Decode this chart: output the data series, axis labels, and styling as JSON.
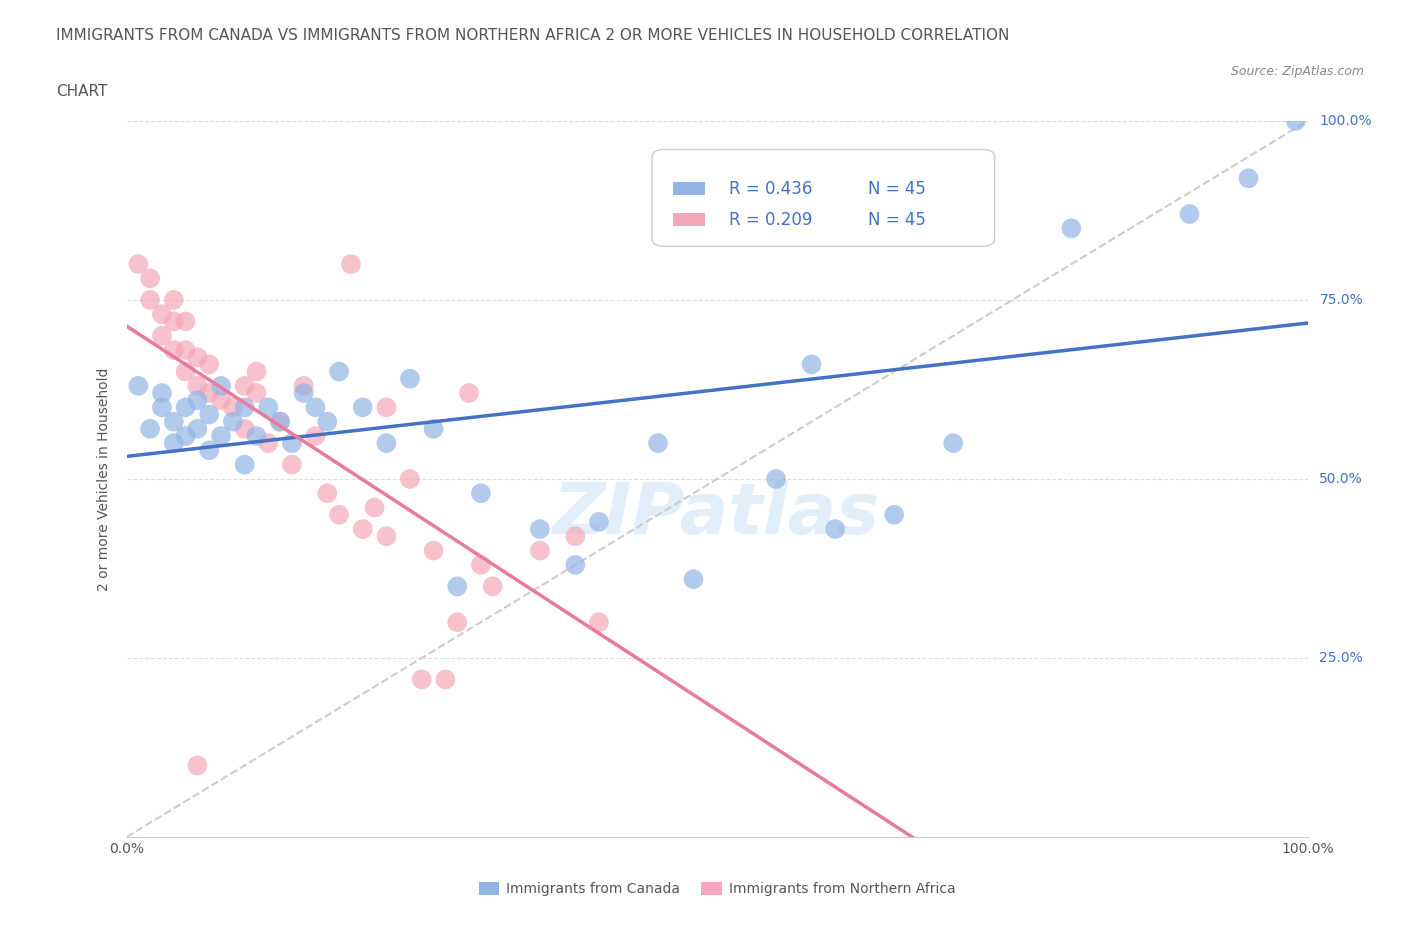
{
  "title_line1": "IMMIGRANTS FROM CANADA VS IMMIGRANTS FROM NORTHERN AFRICA 2 OR MORE VEHICLES IN HOUSEHOLD CORRELATION",
  "title_line2": "CHART",
  "source": "Source: ZipAtlas.com",
  "ylabel": "2 or more Vehicles in Household",
  "xlim": [
    0,
    1
  ],
  "ylim": [
    0,
    1
  ],
  "y_tick_labels_right": [
    "25.0%",
    "50.0%",
    "75.0%",
    "100.0%"
  ],
  "y_tick_positions_right": [
    0.25,
    0.5,
    0.75,
    1.0
  ],
  "canada_color": "#92b4e3",
  "northern_africa_color": "#f4a7b9",
  "canada_line_color": "#4472c4",
  "northern_africa_line_color": "#e87a9a",
  "legend_R_canada": "R = 0.436",
  "legend_N_canada": "N = 45",
  "legend_R_africa": "R = 0.209",
  "legend_N_africa": "N = 45",
  "canada_x": [
    0.01,
    0.02,
    0.03,
    0.03,
    0.04,
    0.04,
    0.05,
    0.05,
    0.06,
    0.06,
    0.07,
    0.07,
    0.08,
    0.08,
    0.09,
    0.1,
    0.1,
    0.11,
    0.12,
    0.13,
    0.14,
    0.15,
    0.16,
    0.17,
    0.18,
    0.2,
    0.22,
    0.24,
    0.26,
    0.3,
    0.35,
    0.4,
    0.45,
    0.55,
    0.6,
    0.65,
    0.7,
    0.8,
    0.9,
    0.95,
    0.38,
    0.28,
    0.48,
    0.58,
    0.99
  ],
  "canada_y": [
    0.63,
    0.57,
    0.6,
    0.62,
    0.55,
    0.58,
    0.56,
    0.6,
    0.57,
    0.61,
    0.54,
    0.59,
    0.56,
    0.63,
    0.58,
    0.52,
    0.6,
    0.56,
    0.6,
    0.58,
    0.55,
    0.62,
    0.6,
    0.58,
    0.65,
    0.6,
    0.55,
    0.64,
    0.57,
    0.48,
    0.43,
    0.44,
    0.55,
    0.5,
    0.43,
    0.45,
    0.55,
    0.85,
    0.87,
    0.92,
    0.38,
    0.35,
    0.36,
    0.66,
    1.0
  ],
  "africa_x": [
    0.01,
    0.02,
    0.02,
    0.03,
    0.03,
    0.04,
    0.04,
    0.04,
    0.05,
    0.05,
    0.05,
    0.06,
    0.06,
    0.07,
    0.07,
    0.08,
    0.09,
    0.1,
    0.1,
    0.11,
    0.11,
    0.12,
    0.13,
    0.14,
    0.15,
    0.16,
    0.17,
    0.18,
    0.2,
    0.21,
    0.22,
    0.24,
    0.26,
    0.28,
    0.3,
    0.35,
    0.38,
    0.4,
    0.22,
    0.25,
    0.27,
    0.29,
    0.31,
    0.19,
    0.06
  ],
  "africa_y": [
    0.8,
    0.75,
    0.78,
    0.7,
    0.73,
    0.68,
    0.72,
    0.75,
    0.65,
    0.68,
    0.72,
    0.63,
    0.67,
    0.62,
    0.66,
    0.61,
    0.6,
    0.63,
    0.57,
    0.62,
    0.65,
    0.55,
    0.58,
    0.52,
    0.63,
    0.56,
    0.48,
    0.45,
    0.43,
    0.46,
    0.42,
    0.5,
    0.4,
    0.3,
    0.38,
    0.4,
    0.42,
    0.3,
    0.6,
    0.22,
    0.22,
    0.62,
    0.35,
    0.8,
    0.1
  ],
  "watermark": "ZIPatlas",
  "background_color": "#ffffff",
  "grid_color": "#dddddd",
  "title_color": "#555555",
  "right_label_color": "#4472c4"
}
